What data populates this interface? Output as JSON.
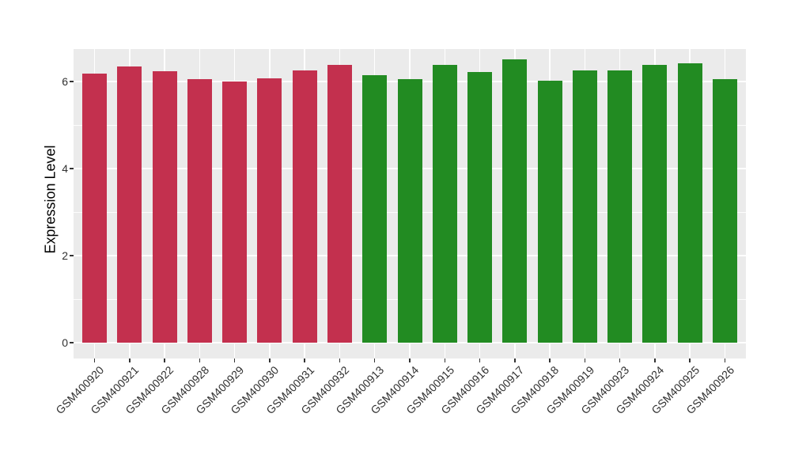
{
  "chart_data": {
    "type": "bar",
    "title": "",
    "xlabel": "",
    "ylabel": "Expression Level",
    "categories": [
      "GSM400920",
      "GSM400921",
      "GSM400922",
      "GSM400928",
      "GSM400929",
      "GSM400930",
      "GSM400931",
      "GSM400932",
      "GSM400913",
      "GSM400914",
      "GSM400915",
      "GSM400916",
      "GSM400917",
      "GSM400918",
      "GSM400919",
      "GSM400923",
      "GSM400924",
      "GSM400925",
      "GSM400926"
    ],
    "values": [
      6.18,
      6.35,
      6.24,
      6.06,
      6.0,
      6.08,
      6.25,
      6.39,
      6.15,
      6.05,
      6.38,
      6.23,
      6.51,
      6.03,
      6.25,
      6.26,
      6.39,
      6.42,
      6.05
    ],
    "groups": [
      "red",
      "red",
      "red",
      "red",
      "red",
      "red",
      "red",
      "red",
      "green",
      "green",
      "green",
      "green",
      "green",
      "green",
      "green",
      "green",
      "green",
      "green",
      "green"
    ],
    "group_colors": {
      "red": "#C3304E",
      "green": "#228B22"
    },
    "yticks": [
      0,
      2,
      4,
      6
    ],
    "yticks_minor": [
      1,
      3,
      5
    ],
    "ylim": [
      -0.36,
      6.75
    ],
    "grid": "on",
    "legend_position": "none",
    "panel_bg": "#EBEBEB",
    "grid_major_color": "#FFFFFF",
    "grid_minor_color": "#FFFFFF",
    "axis_text_color": "#303030",
    "tick_mark_color": "#333333"
  }
}
